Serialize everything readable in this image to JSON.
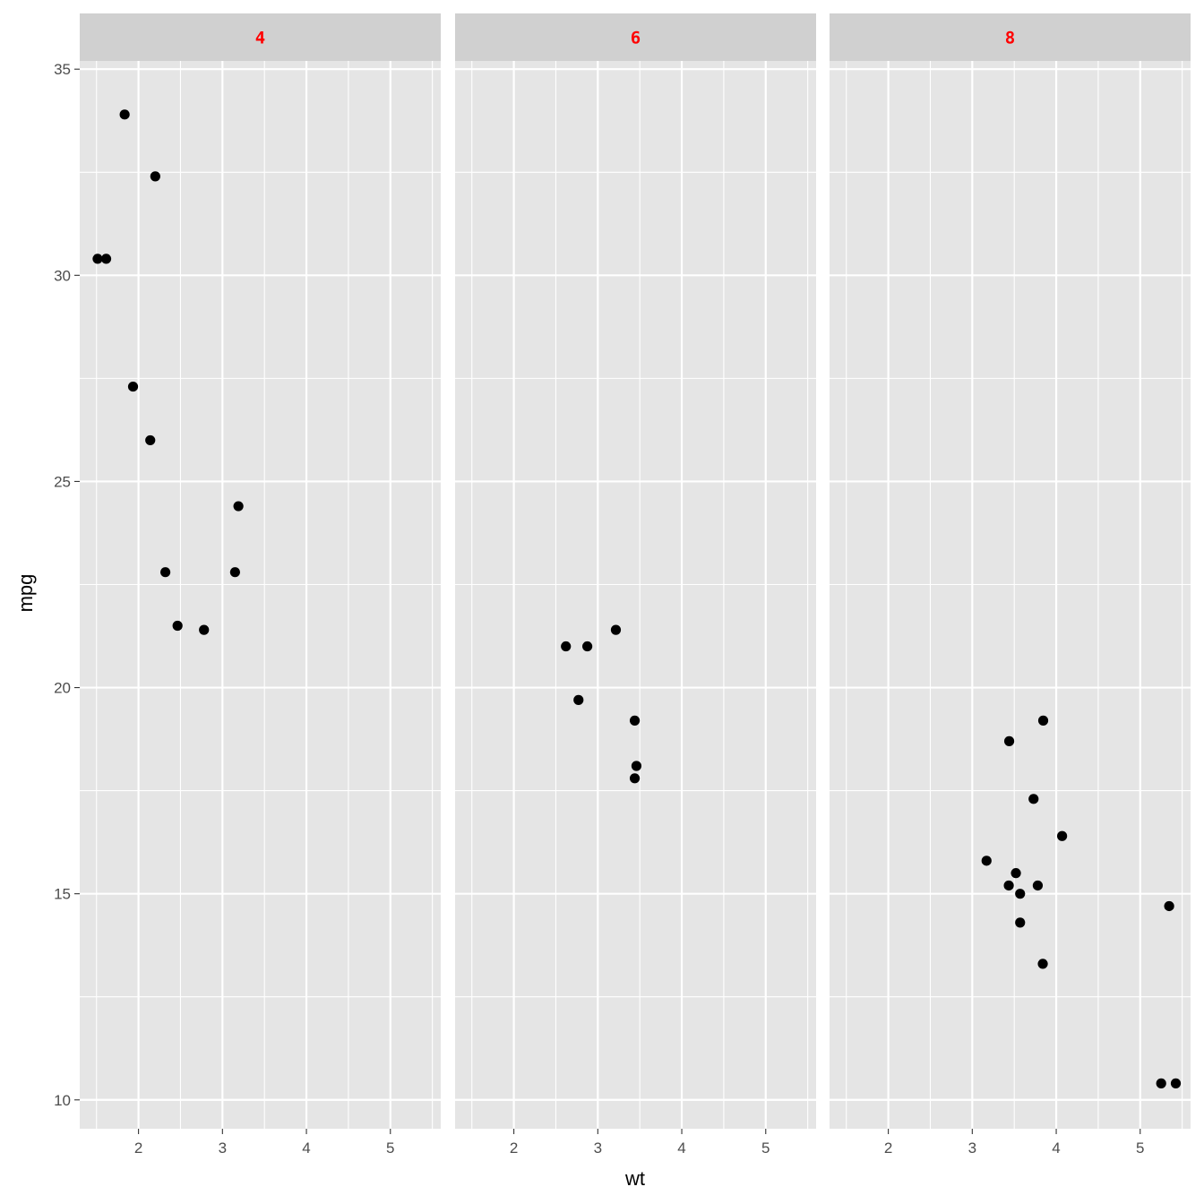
{
  "chart_data": {
    "type": "scatter",
    "facet_variable_values": [
      "4",
      "6",
      "8"
    ],
    "xlabel": "wt",
    "ylabel": "mpg",
    "xlim": [
      1.3,
      5.6
    ],
    "ylim": [
      9.3,
      35.2
    ],
    "x_ticks": [
      2,
      3,
      4,
      5
    ],
    "y_ticks": [
      10,
      15,
      20,
      25,
      30,
      35
    ],
    "grid": true,
    "colors": {
      "panel_background": "#e5e5e5",
      "grid": "#ffffff",
      "strip_background": "#d0d0d0",
      "strip_text": "#ff0000",
      "points": "#000000"
    },
    "panels": [
      {
        "strip": "4",
        "points": [
          {
            "x": 2.32,
            "y": 22.8
          },
          {
            "x": 3.19,
            "y": 24.4
          },
          {
            "x": 3.15,
            "y": 22.8
          },
          {
            "x": 2.2,
            "y": 32.4
          },
          {
            "x": 1.615,
            "y": 30.4
          },
          {
            "x": 1.835,
            "y": 33.9
          },
          {
            "x": 2.465,
            "y": 21.5
          },
          {
            "x": 1.935,
            "y": 27.3
          },
          {
            "x": 2.14,
            "y": 26.0
          },
          {
            "x": 1.513,
            "y": 30.4
          },
          {
            "x": 2.78,
            "y": 21.4
          }
        ]
      },
      {
        "strip": "6",
        "points": [
          {
            "x": 2.62,
            "y": 21.0
          },
          {
            "x": 2.875,
            "y": 21.0
          },
          {
            "x": 3.215,
            "y": 21.4
          },
          {
            "x": 3.46,
            "y": 18.1
          },
          {
            "x": 3.44,
            "y": 19.2
          },
          {
            "x": 3.44,
            "y": 17.8
          },
          {
            "x": 2.77,
            "y": 19.7
          }
        ]
      },
      {
        "strip": "8",
        "points": [
          {
            "x": 3.44,
            "y": 18.7
          },
          {
            "x": 3.57,
            "y": 14.3
          },
          {
            "x": 4.07,
            "y": 16.4
          },
          {
            "x": 3.73,
            "y": 17.3
          },
          {
            "x": 3.78,
            "y": 15.2
          },
          {
            "x": 5.25,
            "y": 10.4
          },
          {
            "x": 5.424,
            "y": 10.4
          },
          {
            "x": 5.345,
            "y": 14.7
          },
          {
            "x": 3.52,
            "y": 15.5
          },
          {
            "x": 3.435,
            "y": 15.2
          },
          {
            "x": 3.84,
            "y": 13.3
          },
          {
            "x": 3.845,
            "y": 19.2
          },
          {
            "x": 3.17,
            "y": 15.8
          },
          {
            "x": 3.57,
            "y": 15.0
          }
        ]
      }
    ]
  }
}
